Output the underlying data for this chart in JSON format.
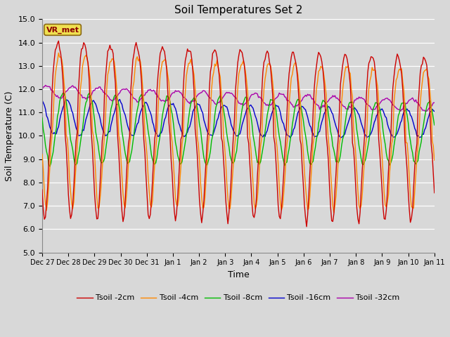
{
  "title": "Soil Temperatures Set 2",
  "xlabel": "Time",
  "ylabel": "Soil Temperature (C)",
  "ylim": [
    5.0,
    15.0
  ],
  "yticks": [
    5.0,
    6.0,
    7.0,
    8.0,
    9.0,
    10.0,
    11.0,
    12.0,
    13.0,
    14.0,
    15.0
  ],
  "background_color": "#d8d8d8",
  "plot_bg_color": "#d8d8d8",
  "legend_label": "VR_met",
  "series_colors": {
    "Tsoil -2cm": "#cc0000",
    "Tsoil -4cm": "#ff8800",
    "Tsoil -8cm": "#00bb00",
    "Tsoil -16cm": "#0000cc",
    "Tsoil -32cm": "#aa00aa"
  },
  "xtick_labels": [
    "Dec 27",
    "Dec 28",
    "Dec 29",
    "Dec 30",
    "Dec 31",
    "Jan 1",
    "Jan 2",
    "Jan 3",
    "Jan 4",
    "Jan 5",
    "Jan 6",
    "Jan 7",
    "Jan 8",
    "Jan 9",
    "Jan 10",
    "Jan 11"
  ],
  "figsize": [
    6.4,
    4.8
  ],
  "dpi": 100
}
